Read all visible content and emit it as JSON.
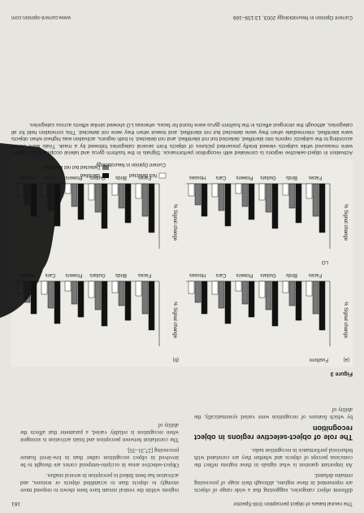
{
  "header": {
    "title": "The neural bases of object perception Grill-Spector",
    "page": "161"
  },
  "body": {
    "left_column": {
      "paragraphs": [
        "different object categories, suggesting that a wide range of objects are represented in these regions, although their stage of processing remains debated.",
        "An important question is what signals in these regions reflect the conscious percept of objects and whether they are correlated with behavioral performance in recognition tasks."
      ],
      "heading": "The role of object-selective regions in object recognition",
      "closing": "by which features of recognition were varied systematically, the ability of"
    },
    "right_column": {
      "paragraphs": [
        "regions within the ventral stream have been shown to respond more strongly to objects than to scrambled objects or textures, and activation has been linked to perception in several studies.",
        "Object-selective areas in occipito-temporal cortex are thought to be involved in object recognition rather than in low-level feature processing [27,31–35].",
        "The correlation between perception and brain activation is strongest when recognition is reliably varied, a parameter that affects the ability of"
      ]
    }
  },
  "figure": {
    "label": "Figure 3",
    "panels": [
      "(a)",
      "(b)"
    ],
    "rows": [
      "Fusiform",
      "LO"
    ],
    "axis_label": "% Signal change",
    "categories": [
      "Faces",
      "Birds",
      "Guitars",
      "Flowers",
      "Cars",
      "Houses"
    ],
    "legend": [
      "Identified",
      "Detected but not identified",
      "Not detected"
    ],
    "credit": "Current Opinion in Neurobiology"
  },
  "caption": "Activation in object-selective regions is correlated with recognition performance. Signals in the fusiform gyrus and lateral occipital (LO) regions were measured while subjects viewed briefly presented pictures of objects from several categories followed by a mask. Trials were sorted according to the subjects' reports into identified, detected but not identified, and not detected. In both regions, activation was highest when objects were identified, intermediate when they were detected but not identified, and lowest when they were not detected. This correlation held for all categories, although the strongest effects in the fusiform gyrus were found for faces, whereas LO showed similar effects across categories.",
  "footer": {
    "journal": "Current Opinion in Neurobiology 2003, 13:159–166",
    "url": "www.current-opinion.com"
  }
}
